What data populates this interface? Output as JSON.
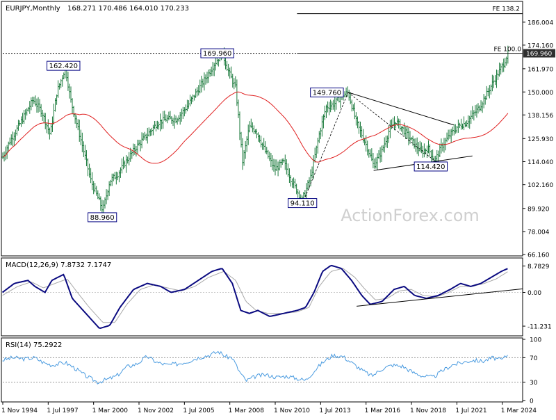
{
  "header": {
    "symbol": "EURJPY,Monthly",
    "ohlc": "168.271 170.486 164.010 170.233"
  },
  "watermark": "ActionForex.com",
  "colors": {
    "background": "#ffffff",
    "bars": "#1b7a3c",
    "ma": "#e02020",
    "macd": "#0a0a80",
    "signal": "#a8a8a8",
    "rsi": "#4a9be0",
    "label_border": "#000080",
    "price_badge": "#2f2f2f"
  },
  "chart_data": [
    {
      "type": "bar",
      "panel": "price",
      "title": "EURJPY,Monthly",
      "y_ticks": [
        "186.004",
        "174.160",
        "161.970",
        "150.000",
        "138.156",
        "125.930",
        "114.040",
        "102.160",
        "89.920",
        "78.004",
        "66.160"
      ],
      "ylim": [
        66.16,
        196
      ],
      "x_tick_labels": [
        "1 Nov 1994",
        "1 Jul 1997",
        "1 Mar 2000",
        "1 Nov 2002",
        "1 Jul 2005",
        "1 Mar 2008",
        "1 Nov 2010",
        "1 Jul 2013",
        "1 Mar 2016",
        "1 Nov 2018",
        "1 Jul 2021",
        "1 Mar 2024"
      ],
      "current_price": "169.960",
      "fib_levels": [
        {
          "label": "FE 138.2",
          "value": 190.4
        },
        {
          "label": "FE 100.0",
          "value": 169.96
        }
      ],
      "annotations": [
        {
          "label": "162.420",
          "date": 1998.4,
          "value": 162.42
        },
        {
          "label": "88.960",
          "date": 2000.6,
          "value": 88.96
        },
        {
          "label": "169.960",
          "date": 2007.6,
          "value": 169.96
        },
        {
          "label": "94.110",
          "date": 2012.6,
          "value": 94.11
        },
        {
          "label": "149.760",
          "date": 2014.2,
          "value": 149.76
        },
        {
          "label": "114.420",
          "date": 2020.3,
          "value": 114.42
        }
      ],
      "anchors": [
        [
          1994.9,
          116
        ],
        [
          1995.3,
          124
        ],
        [
          1995.7,
          130
        ],
        [
          1996.2,
          138
        ],
        [
          1996.7,
          146
        ],
        [
          1997.2,
          140
        ],
        [
          1997.7,
          128
        ],
        [
          1998.1,
          150
        ],
        [
          1998.6,
          162.4
        ],
        [
          1998.9,
          146
        ],
        [
          1999.6,
          122
        ],
        [
          2000.1,
          104
        ],
        [
          2000.8,
          89
        ],
        [
          2001.2,
          104
        ],
        [
          2001.7,
          108
        ],
        [
          2002.3,
          116
        ],
        [
          2002.8,
          122
        ],
        [
          2003.4,
          128
        ],
        [
          2004.0,
          134
        ],
        [
          2004.5,
          136
        ],
        [
          2005.1,
          136
        ],
        [
          2005.7,
          142
        ],
        [
          2006.3,
          150
        ],
        [
          2006.9,
          158
        ],
        [
          2007.3,
          164
        ],
        [
          2007.8,
          170
        ],
        [
          2008.2,
          160
        ],
        [
          2008.6,
          152
        ],
        [
          2009.0,
          114
        ],
        [
          2009.4,
          132
        ],
        [
          2009.8,
          130
        ],
        [
          2010.3,
          120
        ],
        [
          2010.9,
          110
        ],
        [
          2011.4,
          114
        ],
        [
          2011.9,
          104
        ],
        [
          2012.5,
          94.1
        ],
        [
          2013.0,
          106
        ],
        [
          2013.5,
          128
        ],
        [
          2013.9,
          142
        ],
        [
          2014.4,
          144
        ],
        [
          2014.8,
          148
        ],
        [
          2015.2,
          149.8
        ],
        [
          2015.7,
          134
        ],
        [
          2016.3,
          122
        ],
        [
          2016.7,
          112
        ],
        [
          2017.2,
          120
        ],
        [
          2017.6,
          130
        ],
        [
          2018.0,
          135
        ],
        [
          2018.5,
          130
        ],
        [
          2019.0,
          124
        ],
        [
          2019.5,
          119
        ],
        [
          2019.9,
          121
        ],
        [
          2020.3,
          114.4
        ],
        [
          2020.7,
          122
        ],
        [
          2021.2,
          128
        ],
        [
          2021.6,
          132
        ],
        [
          2022.1,
          134
        ],
        [
          2022.5,
          138
        ],
        [
          2022.9,
          142
        ],
        [
          2023.4,
          150
        ],
        [
          2023.9,
          158
        ],
        [
          2024.3,
          164
        ],
        [
          2024.6,
          170
        ]
      ]
    },
    {
      "type": "line",
      "panel": "macd",
      "title": "MACD(12,26,9) 7.8732 7.1747",
      "y_ticks": [
        "8.7829",
        "0.00",
        "-11.231"
      ],
      "ylim": [
        -14,
        11
      ],
      "series": [
        {
          "values": [
            [
              1994.9,
              0
            ],
            [
              1995.6,
              3
            ],
            [
              1996.4,
              4
            ],
            [
              1996.8,
              2
            ],
            [
              1997.4,
              0
            ],
            [
              1997.8,
              4
            ],
            [
              1998.5,
              6
            ],
            [
              1999.0,
              -2
            ],
            [
              1999.8,
              -7
            ],
            [
              2000.6,
              -12
            ],
            [
              2001.2,
              -11
            ],
            [
              2001.8,
              -5
            ],
            [
              2002.6,
              1
            ],
            [
              2003.4,
              3
            ],
            [
              2004.2,
              2
            ],
            [
              2004.8,
              0
            ],
            [
              2005.6,
              1
            ],
            [
              2006.4,
              4
            ],
            [
              2007.2,
              7
            ],
            [
              2007.8,
              8
            ],
            [
              2008.4,
              3
            ],
            [
              2008.9,
              -6
            ],
            [
              2009.4,
              -7
            ],
            [
              2009.9,
              -6
            ],
            [
              2010.6,
              -8
            ],
            [
              2011.4,
              -7
            ],
            [
              2012.2,
              -6
            ],
            [
              2012.7,
              -5
            ],
            [
              2013.2,
              0
            ],
            [
              2013.7,
              7
            ],
            [
              2014.2,
              9
            ],
            [
              2014.8,
              8
            ],
            [
              2015.4,
              4
            ],
            [
              2016.0,
              -1
            ],
            [
              2016.5,
              -4
            ],
            [
              2017.2,
              -3
            ],
            [
              2017.9,
              1
            ],
            [
              2018.5,
              2
            ],
            [
              2019.1,
              -1
            ],
            [
              2019.8,
              -2
            ],
            [
              2020.5,
              -1
            ],
            [
              2021.2,
              1
            ],
            [
              2021.8,
              3
            ],
            [
              2022.4,
              2
            ],
            [
              2023.0,
              3
            ],
            [
              2023.6,
              5
            ],
            [
              2024.2,
              7
            ],
            [
              2024.6,
              8
            ]
          ]
        },
        {
          "values": [
            [
              1994.9,
              -1
            ],
            [
              1995.8,
              2
            ],
            [
              1996.6,
              3.5
            ],
            [
              1997.3,
              1.5
            ],
            [
              1998.0,
              3
            ],
            [
              1998.7,
              4.5
            ],
            [
              1999.3,
              0
            ],
            [
              2000.0,
              -5
            ],
            [
              2000.8,
              -10
            ],
            [
              2001.5,
              -10
            ],
            [
              2002.2,
              -4
            ],
            [
              2003.0,
              1
            ],
            [
              2003.8,
              2.5
            ],
            [
              2004.6,
              1.5
            ],
            [
              2005.4,
              0.5
            ],
            [
              2006.2,
              2
            ],
            [
              2007.0,
              5
            ],
            [
              2007.9,
              7
            ],
            [
              2008.6,
              4
            ],
            [
              2009.2,
              -3
            ],
            [
              2009.8,
              -6
            ],
            [
              2010.5,
              -7
            ],
            [
              2011.3,
              -7
            ],
            [
              2012.2,
              -6.5
            ],
            [
              2012.9,
              -5
            ],
            [
              2013.5,
              2
            ],
            [
              2014.2,
              7
            ],
            [
              2014.9,
              8
            ],
            [
              2015.6,
              5
            ],
            [
              2016.2,
              1
            ],
            [
              2016.8,
              -2.5
            ],
            [
              2017.5,
              -2
            ],
            [
              2018.2,
              0.5
            ],
            [
              2018.9,
              1
            ],
            [
              2019.6,
              -1
            ],
            [
              2020.4,
              -1.5
            ],
            [
              2021.1,
              0
            ],
            [
              2021.8,
              2
            ],
            [
              2022.5,
              2
            ],
            [
              2023.2,
              3
            ],
            [
              2023.9,
              4.5
            ],
            [
              2024.6,
              7
            ]
          ]
        }
      ]
    },
    {
      "type": "line",
      "panel": "rsi",
      "title": "RSI(14) 75.2922",
      "y_ticks": [
        "100",
        "70",
        "30",
        "0"
      ],
      "ylim": [
        0,
        100
      ],
      "levels": [
        70,
        30
      ],
      "series": [
        {
          "values": [
            [
              1994.9,
              66
            ],
            [
              1995.5,
              70
            ],
            [
              1996.2,
              68
            ],
            [
              1996.8,
              70
            ],
            [
              1997.3,
              62
            ],
            [
              1997.8,
              58
            ],
            [
              1998.6,
              62
            ],
            [
              1999.2,
              52
            ],
            [
              1999.8,
              40
            ],
            [
              2000.5,
              30
            ],
            [
              2001.0,
              34
            ],
            [
              2001.6,
              40
            ],
            [
              2002.2,
              55
            ],
            [
              2002.8,
              60
            ],
            [
              2003.4,
              72
            ],
            [
              2004.0,
              62
            ],
            [
              2004.6,
              58
            ],
            [
              2005.2,
              60
            ],
            [
              2005.8,
              64
            ],
            [
              2006.4,
              70
            ],
            [
              2007.0,
              74
            ],
            [
              2007.6,
              80
            ],
            [
              2008.0,
              72
            ],
            [
              2008.4,
              70
            ],
            [
              2008.8,
              48
            ],
            [
              2009.2,
              32
            ],
            [
              2009.8,
              40
            ],
            [
              2010.4,
              42
            ],
            [
              2011.0,
              38
            ],
            [
              2011.6,
              40
            ],
            [
              2012.2,
              36
            ],
            [
              2012.7,
              33
            ],
            [
              2013.2,
              48
            ],
            [
              2013.7,
              62
            ],
            [
              2014.3,
              74
            ],
            [
              2014.9,
              72
            ],
            [
              2015.5,
              60
            ],
            [
              2016.1,
              48
            ],
            [
              2016.6,
              40
            ],
            [
              2017.2,
              52
            ],
            [
              2017.8,
              58
            ],
            [
              2018.4,
              56
            ],
            [
              2019.0,
              46
            ],
            [
              2019.6,
              40
            ],
            [
              2020.2,
              38
            ],
            [
              2020.7,
              48
            ],
            [
              2021.3,
              58
            ],
            [
              2021.9,
              62
            ],
            [
              2022.5,
              66
            ],
            [
              2023.1,
              64
            ],
            [
              2023.7,
              70
            ],
            [
              2024.2,
              66
            ],
            [
              2024.6,
              75.3
            ]
          ]
        }
      ]
    }
  ]
}
